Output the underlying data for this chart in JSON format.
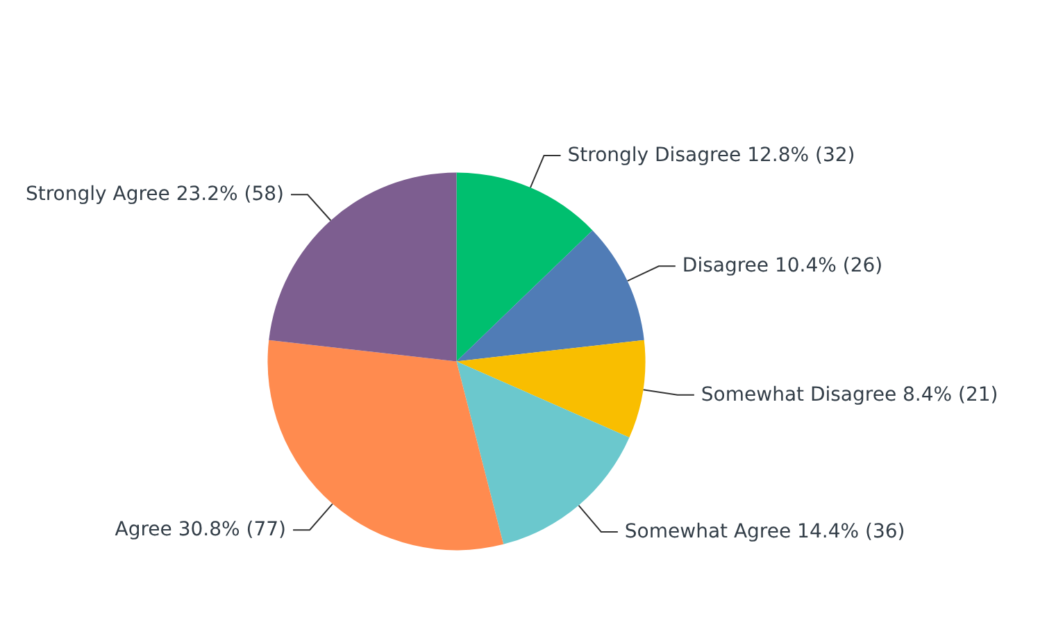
{
  "chart_data": {
    "type": "pie",
    "categories": [
      "Strongly Disagree",
      "Disagree",
      "Somewhat Disagree",
      "Somewhat Agree",
      "Agree",
      "Strongly Agree"
    ],
    "values": [
      32,
      26,
      21,
      36,
      77,
      58
    ],
    "value_labels": [
      "12.8% (32)",
      "10.4% (26)",
      "8.4% (21)",
      "14.4% (36)",
      "30.8% (77)",
      "23.2% (58)"
    ],
    "colors": [
      "#00bf6f",
      "#507cb6",
      "#f9be00",
      "#6bc8cd",
      "#ff8b4f",
      "#7d5e90"
    ],
    "legend": false
  }
}
